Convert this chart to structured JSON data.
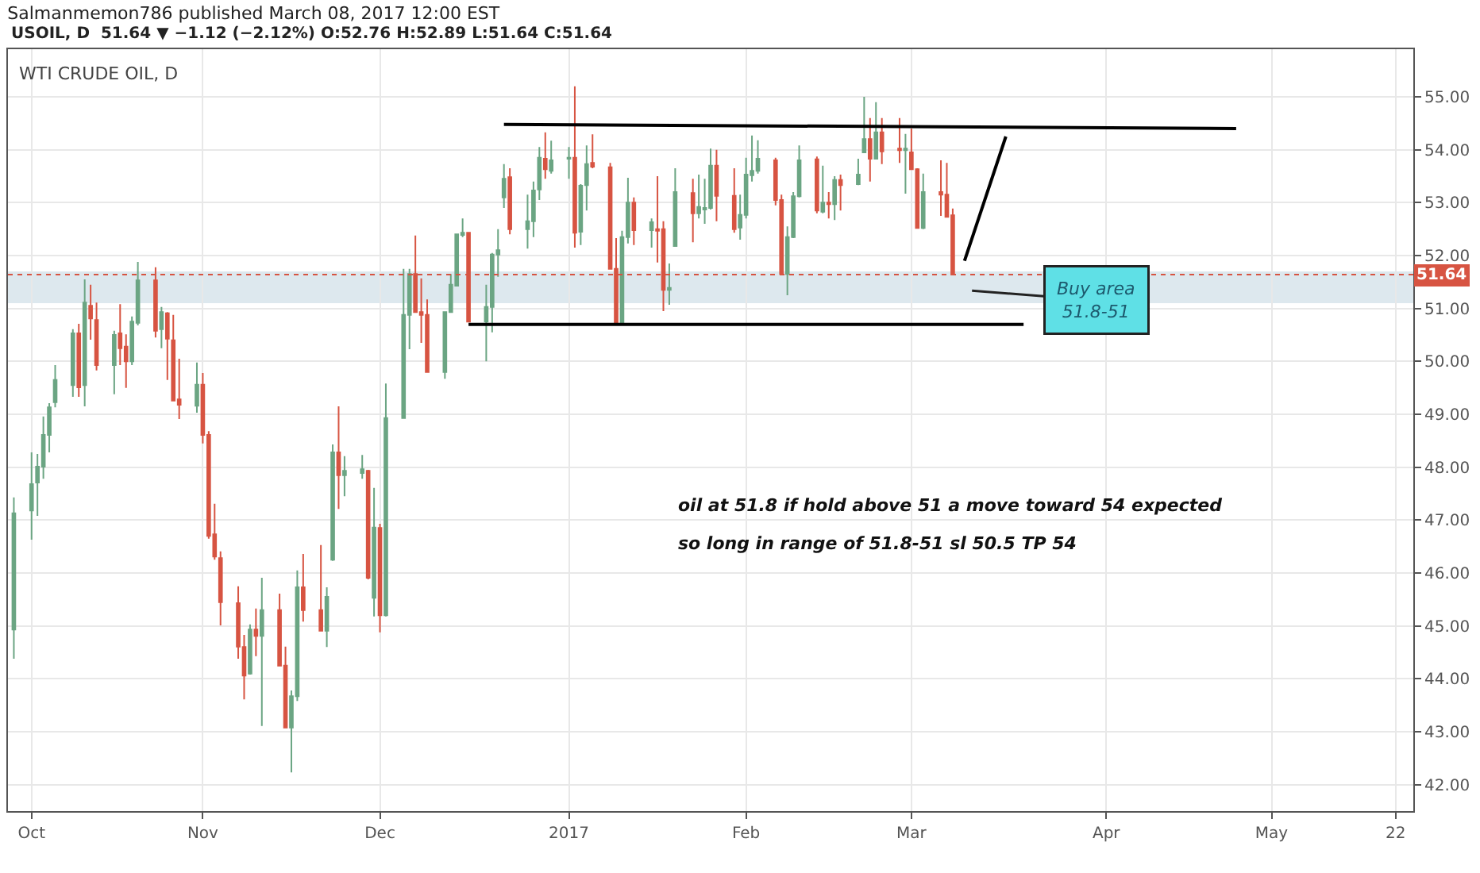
{
  "chart_data": {
    "type": "candlestick",
    "title": "Salmanmemon786 published March 08, 2017 12:00 EST",
    "subtitle": "USOIL, D  51.64 ▼ −1.12 (−2.12%) O:52.76 H:52.89 L:51.64 C:51.64",
    "annotations": [
      "WTI CRUDE OIL, D",
      "oil at 51.8 if hold above 51 a move toward 54 expected",
      "so long in range of 51.8-51 sl 50.5 TP 54",
      "Buy area\n51.8-51"
    ],
    "series": [
      {
        "type": "line",
        "color": "#000000",
        "x": [
          "2016-12-22",
          "2017-04-25"
        ],
        "values": [
          54.48,
          54.4
        ]
      },
      {
        "type": "line",
        "color": "#000000",
        "x": [
          "2016-12-16",
          "2017-03-20"
        ],
        "values": [
          50.7,
          50.7
        ]
      },
      {
        "type": "line",
        "color": "#000000",
        "x": [
          "2017-03-10",
          "2017-03-17"
        ],
        "values": [
          51.9,
          54.25
        ]
      },
      {
        "x": [
          "2016-09-30",
          "2016-10-03",
          "2016-10-04",
          "2016-10-05",
          "2016-10-06",
          "2016-10-07",
          "2016-10-10",
          "2016-10-11",
          "2016-10-12",
          "2016-10-13",
          "2016-10-14",
          "2016-10-17",
          "2016-10-18",
          "2016-10-19",
          "2016-10-20",
          "2016-10-21",
          "2016-10-24",
          "2016-10-25",
          "2016-10-26",
          "2016-10-27",
          "2016-10-28",
          "2016-10-31",
          "2016-11-01",
          "2016-11-02",
          "2016-11-03",
          "2016-11-04",
          "2016-11-07",
          "2016-11-08",
          "2016-11-09",
          "2016-11-10",
          "2016-11-11",
          "2016-11-14",
          "2016-11-15",
          "2016-11-16",
          "2016-11-17",
          "2016-11-18",
          "2016-11-21",
          "2016-11-22",
          "2016-11-23",
          "2016-11-24",
          "2016-11-25",
          "2016-11-28",
          "2016-11-29",
          "2016-11-30",
          "2016-12-01",
          "2016-12-02",
          "2016-12-05",
          "2016-12-06",
          "2016-12-07",
          "2016-12-08",
          "2016-12-09",
          "2016-12-12",
          "2016-12-13",
          "2016-12-14",
          "2016-12-15",
          "2016-12-16",
          "2016-12-19",
          "2016-12-20",
          "2016-12-21",
          "2016-12-22",
          "2016-12-23",
          "2016-12-26",
          "2016-12-27",
          "2016-12-28",
          "2016-12-29",
          "2016-12-30",
          "2017-01-02",
          "2017-01-03",
          "2017-01-04",
          "2017-01-05",
          "2017-01-06",
          "2017-01-09",
          "2017-01-10",
          "2017-01-11",
          "2017-01-12",
          "2017-01-13",
          "2017-01-16",
          "2017-01-17",
          "2017-01-18",
          "2017-01-19",
          "2017-01-20",
          "2017-01-23",
          "2017-01-24",
          "2017-01-25",
          "2017-01-26",
          "2017-01-27",
          "2017-01-30",
          "2017-01-31",
          "2017-02-01",
          "2017-02-02",
          "2017-02-03",
          "2017-02-06",
          "2017-02-07",
          "2017-02-08",
          "2017-02-09",
          "2017-02-10",
          "2017-02-13",
          "2017-02-14",
          "2017-02-15",
          "2017-02-16",
          "2017-02-17",
          "2017-02-20",
          "2017-02-21",
          "2017-02-22",
          "2017-02-23",
          "2017-02-24",
          "2017-02-27",
          "2017-02-28",
          "2017-03-01",
          "2017-03-02",
          "2017-03-03",
          "2017-03-06",
          "2017-03-07",
          "2017-03-08"
        ],
        "ohlc": [
          [
            44.93,
            47.43,
            44.38,
            47.13
          ],
          [
            47.18,
            48.28,
            46.63,
            47.68
          ],
          [
            47.71,
            48.25,
            47.08,
            48.01
          ],
          [
            48.01,
            48.96,
            47.78,
            48.61
          ],
          [
            48.61,
            49.21,
            48.28,
            49.13
          ],
          [
            49.23,
            49.93,
            49.13,
            49.65
          ],
          [
            49.55,
            50.61,
            49.33,
            50.53
          ],
          [
            50.53,
            50.71,
            49.33,
            49.51
          ],
          [
            49.55,
            51.55,
            49.15,
            51.11
          ],
          [
            51.05,
            51.45,
            50.41,
            50.81
          ],
          [
            50.78,
            51.11,
            49.83,
            49.93
          ],
          [
            49.93,
            50.58,
            49.38,
            50.5
          ],
          [
            50.53,
            51.08,
            49.93,
            50.25
          ],
          [
            50.28,
            50.51,
            49.5,
            50.0
          ],
          [
            50.0,
            50.85,
            49.93,
            50.75
          ],
          [
            50.73,
            51.88,
            50.68,
            51.53
          ],
          [
            51.53,
            51.78,
            50.45,
            50.58
          ],
          [
            50.61,
            51.03,
            50.25,
            50.93
          ],
          [
            50.91,
            50.93,
            49.65,
            50.43
          ],
          [
            50.4,
            50.88,
            49.25,
            49.26
          ],
          [
            49.28,
            50.05,
            48.91,
            49.18
          ],
          [
            49.16,
            49.98,
            49.03,
            49.56
          ],
          [
            49.56,
            49.78,
            48.45,
            48.61
          ],
          [
            48.61,
            48.68,
            46.65,
            46.7
          ],
          [
            46.73,
            47.31,
            46.25,
            46.31
          ],
          [
            46.28,
            46.41,
            45.01,
            45.45
          ],
          [
            45.43,
            45.75,
            44.38,
            44.61
          ],
          [
            44.6,
            44.83,
            43.61,
            44.06
          ],
          [
            44.1,
            45.03,
            44.08,
            44.93
          ],
          [
            44.93,
            45.33,
            44.43,
            44.81
          ],
          [
            44.81,
            45.91,
            43.11,
            45.3
          ],
          [
            45.3,
            45.61,
            44.25,
            44.25
          ],
          [
            44.25,
            44.61,
            43.08,
            43.08
          ],
          [
            43.08,
            43.78,
            42.23,
            43.67
          ],
          [
            43.67,
            46.05,
            43.58,
            45.73
          ],
          [
            45.73,
            46.36,
            45.08,
            45.3
          ],
          [
            45.3,
            46.53,
            44.91,
            44.91
          ],
          [
            44.91,
            45.73,
            44.6,
            45.55
          ],
          [
            46.25,
            48.43,
            46.23,
            48.28
          ],
          [
            48.28,
            49.15,
            47.21,
            47.85
          ],
          [
            47.85,
            48.21,
            47.45,
            47.93
          ],
          [
            47.89,
            48.23,
            47.78,
            47.96
          ],
          [
            47.93,
            47.95,
            45.88,
            45.91
          ],
          [
            45.53,
            47.61,
            45.18,
            46.86
          ],
          [
            46.85,
            46.93,
            44.88,
            45.2
          ],
          [
            45.2,
            49.58,
            45.18,
            48.93
          ],
          [
            48.93,
            51.75,
            48.93,
            50.88
          ],
          [
            50.88,
            51.75,
            50.23,
            51.65
          ],
          [
            51.65,
            52.38,
            50.93,
            50.93
          ],
          [
            50.93,
            51.57,
            50.35,
            50.88
          ],
          [
            50.88,
            51.17,
            49.8,
            49.8
          ],
          [
            49.8,
            50.93,
            49.67,
            50.93
          ],
          [
            50.93,
            51.65,
            50.93,
            51.45
          ],
          [
            51.43,
            52.4,
            51.43,
            52.4
          ],
          [
            52.39,
            52.7,
            52.35,
            52.43
          ],
          [
            52.43,
            52.43,
            50.75,
            50.75
          ],
          [
            50.75,
            51.45,
            50.0,
            51.03
          ],
          [
            51.03,
            52.05,
            50.55,
            52.02
          ],
          [
            52.02,
            52.5,
            51.6,
            52.1
          ],
          [
            53.1,
            53.73,
            52.9,
            53.45
          ],
          [
            53.48,
            53.65,
            52.4,
            52.5
          ],
          [
            52.5,
            53.15,
            52.13,
            52.65
          ],
          [
            52.65,
            53.4,
            52.35,
            53.23
          ],
          [
            53.25,
            54.05,
            53.05,
            53.85
          ],
          [
            53.83,
            54.33,
            53.45,
            53.63
          ],
          [
            53.6,
            54.17,
            53.55,
            53.8
          ],
          [
            53.83,
            54.05,
            53.45,
            53.85
          ],
          [
            53.85,
            55.2,
            52.15,
            52.43
          ],
          [
            52.45,
            53.35,
            52.2,
            53.32
          ],
          [
            53.33,
            54.08,
            52.85,
            53.73
          ],
          [
            53.75,
            54.29,
            53.65,
            53.68
          ],
          [
            53.67,
            53.75,
            51.75,
            51.75
          ],
          [
            51.75,
            52.33,
            50.73,
            50.73
          ],
          [
            50.73,
            52.47,
            50.73,
            52.35
          ],
          [
            52.35,
            53.47,
            52.23,
            53.0
          ],
          [
            53.0,
            53.1,
            52.2,
            52.48
          ],
          [
            52.48,
            52.7,
            52.15,
            52.63
          ],
          [
            52.5,
            53.5,
            51.87,
            52.47
          ],
          [
            52.5,
            52.65,
            50.95,
            51.35
          ],
          [
            51.35,
            51.85,
            51.07,
            51.39
          ],
          [
            52.18,
            53.65,
            52.18,
            53.2
          ],
          [
            53.18,
            53.45,
            52.25,
            52.8
          ],
          [
            52.8,
            53.53,
            52.7,
            52.92
          ],
          [
            52.87,
            53.45,
            52.6,
            52.9
          ],
          [
            52.9,
            54.02,
            52.87,
            53.7
          ],
          [
            53.7,
            54.0,
            52.65,
            53.13
          ],
          [
            53.13,
            53.65,
            52.43,
            52.5
          ],
          [
            52.53,
            53.15,
            52.3,
            52.77
          ],
          [
            52.77,
            53.85,
            52.7,
            53.53
          ],
          [
            53.52,
            54.27,
            53.4,
            53.6
          ],
          [
            53.6,
            54.18,
            53.55,
            53.83
          ],
          [
            53.8,
            53.85,
            52.95,
            53.05
          ],
          [
            53.05,
            53.15,
            51.65,
            51.65
          ],
          [
            51.65,
            52.55,
            51.25,
            52.35
          ],
          [
            52.35,
            53.2,
            52.33,
            53.12
          ],
          [
            53.12,
            54.08,
            53.1,
            53.8
          ],
          [
            53.82,
            53.87,
            52.8,
            52.85
          ],
          [
            52.83,
            53.7,
            52.8,
            53.0
          ],
          [
            53.0,
            53.2,
            52.7,
            52.97
          ],
          [
            52.97,
            53.5,
            52.67,
            53.43
          ],
          [
            53.43,
            53.53,
            52.85,
            53.33
          ],
          [
            53.35,
            53.83,
            53.33,
            53.53
          ],
          [
            53.95,
            55.0,
            53.95,
            54.2
          ],
          [
            54.2,
            54.6,
            53.4,
            53.83
          ],
          [
            53.83,
            54.9,
            53.83,
            54.33
          ],
          [
            54.33,
            54.6,
            53.73,
            53.97
          ],
          [
            54.02,
            54.6,
            53.75,
            53.99
          ],
          [
            53.99,
            54.3,
            53.17,
            54.02
          ],
          [
            53.95,
            54.4,
            53.63,
            53.63
          ],
          [
            53.63,
            53.65,
            52.52,
            52.52
          ],
          [
            52.52,
            53.55,
            52.5,
            53.2
          ],
          [
            53.2,
            53.8,
            52.75,
            53.15
          ],
          [
            53.15,
            53.75,
            52.73,
            52.73
          ],
          [
            52.76,
            52.89,
            51.64,
            51.64
          ]
        ]
      }
    ],
    "xlim": [
      "2016-09-29",
      "2017-05-25"
    ],
    "xticks": [
      {
        "value": "2016-10-03",
        "label": "Oct"
      },
      {
        "value": "2016-11-01",
        "label": "Nov"
      },
      {
        "value": "2016-12-01",
        "label": "Dec"
      },
      {
        "value": "2017-01-02",
        "label": "2017"
      },
      {
        "value": "2017-02-01",
        "label": "Feb"
      },
      {
        "value": "2017-03-01",
        "label": "Mar"
      },
      {
        "value": "2017-04-03",
        "label": "Apr"
      },
      {
        "value": "2017-05-01",
        "label": "May"
      },
      {
        "value": "2017-05-22",
        "label": "22"
      }
    ],
    "ylim": [
      41.5,
      55.9
    ],
    "yticks": [
      {
        "value": 42,
        "label": "42.00"
      },
      {
        "value": 43,
        "label": "43.00"
      },
      {
        "value": 44,
        "label": "44.00"
      },
      {
        "value": 45,
        "label": "45.00"
      },
      {
        "value": 46,
        "label": "46.00"
      },
      {
        "value": 47,
        "label": "47.00"
      },
      {
        "value": 48,
        "label": "48.00"
      },
      {
        "value": 49,
        "label": "49.00"
      },
      {
        "value": 50,
        "label": "50.00"
      },
      {
        "value": 51,
        "label": "51.00"
      },
      {
        "value": 52,
        "label": "52.00"
      },
      {
        "value": 53,
        "label": "53.00"
      },
      {
        "value": 54,
        "label": "54.00"
      },
      {
        "value": 55,
        "label": "55.00"
      }
    ],
    "ref_lines": [
      {
        "axis": "y",
        "value": 51.64,
        "label": "51.64",
        "color": "#d75442",
        "line_style": "dotted"
      }
    ],
    "bands": [
      {
        "axis": "y",
        "from": 51.1,
        "to": 51.7,
        "color": "#dde8ee"
      }
    ],
    "grid": true
  }
}
